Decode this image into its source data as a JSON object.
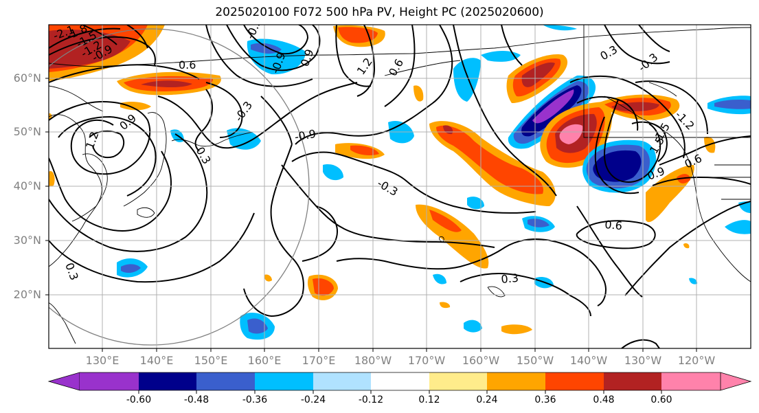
{
  "title": "2025020100 F072 500 hPa PV, Height PC (2025020600)",
  "lat_labels": [
    "60°N",
    "50°N",
    "40°N",
    "30°N",
    "20°N"
  ],
  "lon_labels": [
    "130°E",
    "140°E",
    "150°E",
    "160°E",
    "170°E",
    "180°W",
    "170°W",
    "160°W",
    "150°W",
    "140°W",
    "130°W",
    "120°W"
  ],
  "contour_labels": [
    "-2.1",
    "-1.8",
    "-1.5",
    "-1.2",
    "-0.9",
    "0.6",
    "0.3",
    "0.9",
    "1.2",
    "-0.3",
    "-0.9",
    "0.9",
    "-0.3",
    "0.6",
    "0.3",
    "-0.9",
    "0.6",
    "0.3",
    "1.2",
    "0.3",
    "1.5",
    "0.9",
    "0.6",
    "-0.3",
    "-0.3",
    "-1.2",
    "-1.5"
  ],
  "colorbar": {
    "colors": [
      "#9932CC",
      "#00008B",
      "#3A5FCD",
      "#00BFFF",
      "#B0E2FF",
      "#FFFFFF",
      "#FFEC8B",
      "#FFA500",
      "#FF4500",
      "#B22222",
      "#FF82AB"
    ],
    "tick_labels": [
      "-0.60",
      "-0.48",
      "-0.36",
      "-0.24",
      "-0.12",
      "0.12",
      "0.24",
      "0.36",
      "0.48",
      "0.60"
    ]
  },
  "colors": {
    "grid": "#b0b0b0",
    "contour": "#000000",
    "ring": "#808080"
  }
}
